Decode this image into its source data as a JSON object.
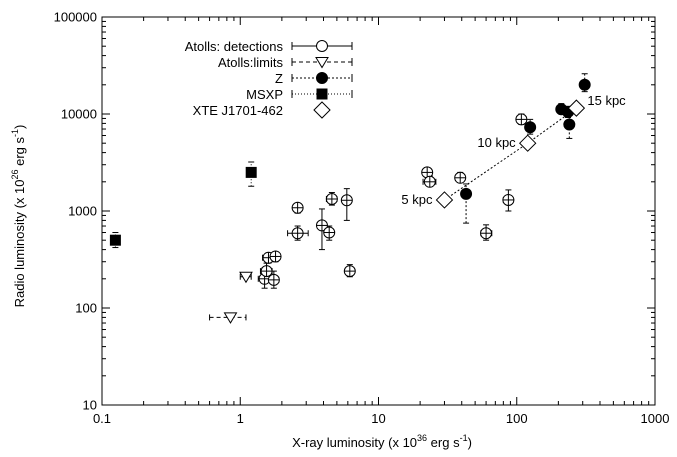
{
  "chart_data": {
    "type": "scatter",
    "xscale": "log",
    "yscale": "log",
    "xlim": [
      0.1,
      1000
    ],
    "ylim": [
      10,
      100000
    ],
    "grid": false,
    "legend_position": "top-left",
    "xlabel": {
      "pre": "X-ray luminosity (x 10",
      "sup": "36",
      "post": " erg s",
      "sup2": "-1",
      "end": ")"
    },
    "ylabel": {
      "pre": "Radio luminosity (x 10",
      "sup": "26",
      "post": " erg s",
      "sup2": "-1",
      "end": ")"
    },
    "xticks": [
      {
        "value": 0.1,
        "label": "0.1"
      },
      {
        "value": 1,
        "label": "1"
      },
      {
        "value": 10,
        "label": "10"
      },
      {
        "value": 100,
        "label": "100"
      },
      {
        "value": 1000,
        "label": "1000"
      }
    ],
    "yticks": [
      {
        "value": 10,
        "label": "10"
      },
      {
        "value": 100,
        "label": "100"
      },
      {
        "value": 1000,
        "label": "1000"
      },
      {
        "value": 10000,
        "label": "10000"
      },
      {
        "value": 100000,
        "label": "100000"
      }
    ],
    "series": [
      {
        "name": "Atolls: detections",
        "marker": "circle-cross-open",
        "line": "solid",
        "points": [
          {
            "x": 1.5,
            "y": 200,
            "xerr": [
              1.35,
              1.65
            ],
            "yerr": [
              160,
              260
            ]
          },
          {
            "x": 1.55,
            "y": 240,
            "xerr": [
              1.4,
              1.7
            ],
            "yerr": [
              200,
              290
            ]
          },
          {
            "x": 1.6,
            "y": 330,
            "xerr": [
              1.45,
              1.75
            ],
            "yerr": [
              290,
              370
            ]
          },
          {
            "x": 1.75,
            "y": 195,
            "xerr": [
              1.6,
              1.9
            ],
            "yerr": [
              160,
              240
            ]
          },
          {
            "x": 1.8,
            "y": 340,
            "xerr": [
              1.65,
              1.95
            ],
            "yerr": [
              300,
              380
            ]
          },
          {
            "x": 2.6,
            "y": 590,
            "xerr": [
              2.2,
              3.1
            ],
            "yerr": [
              500,
              700
            ]
          },
          {
            "x": 2.6,
            "y": 1080,
            "xerr": [
              2.45,
              2.75
            ],
            "yerr": [
              950,
              1200
            ]
          },
          {
            "x": 3.9,
            "y": 710,
            "xerr": [
              3.6,
              4.2
            ],
            "yerr": [
              400,
              1050
            ]
          },
          {
            "x": 4.4,
            "y": 600,
            "xerr": [
              4.1,
              4.7
            ],
            "yerr": [
              500,
              700
            ]
          },
          {
            "x": 4.6,
            "y": 1330,
            "xerr": [
              4.2,
              5.0
            ],
            "yerr": [
              1150,
              1550
            ]
          },
          {
            "x": 5.9,
            "y": 1290,
            "xerr": [
              5.5,
              6.3
            ],
            "yerr": [
              800,
              1700
            ]
          },
          {
            "x": 6.2,
            "y": 240,
            "xerr": [
              5.9,
              6.5
            ],
            "yerr": [
              210,
              280
            ]
          },
          {
            "x": 22.5,
            "y": 2500,
            "xerr": [
              21,
              24
            ],
            "yerr": [
              2300,
              2800
            ]
          },
          {
            "x": 23.5,
            "y": 2000,
            "xerr": [
              21,
              26
            ],
            "yerr": [
              1800,
              2300
            ]
          },
          {
            "x": 39,
            "y": 2200,
            "xerr": [
              36,
              42
            ],
            "yerr": [
              2000,
              2500
            ]
          },
          {
            "x": 60,
            "y": 590,
            "xerr": [
              55,
              66
            ],
            "yerr": [
              500,
              720
            ]
          },
          {
            "x": 87,
            "y": 1300,
            "xerr": [
              80,
              94
            ],
            "yerr": [
              1000,
              1650
            ]
          },
          {
            "x": 108,
            "y": 8800,
            "xerr": [
              100,
              117
            ],
            "yerr": [
              7800,
              10000
            ]
          }
        ]
      },
      {
        "name": "Atolls:limits",
        "marker": "triangle-down-open",
        "line": "dashed",
        "points": [
          {
            "x": 0.85,
            "y": 80,
            "xerr": [
              0.6,
              1.1
            ]
          },
          {
            "x": 1.1,
            "y": 210,
            "xerr": [
              1.0,
              1.2
            ]
          }
        ]
      },
      {
        "name": "Z",
        "marker": "circle-filled",
        "line": "dotted",
        "points": [
          {
            "x": 43,
            "y": 1500,
            "yerr": [
              750,
              1900
            ]
          },
          {
            "x": 125,
            "y": 7300,
            "yerr": [
              6200,
              8800
            ]
          },
          {
            "x": 210,
            "y": 11200,
            "yerr": [
              10000,
              12800
            ]
          },
          {
            "x": 235,
            "y": 10500,
            "yerr": [
              9200,
              12000
            ]
          },
          {
            "x": 240,
            "y": 7800,
            "yerr": [
              5600,
              10000
            ]
          },
          {
            "x": 310,
            "y": 20000,
            "yerr": [
              17000,
              26000
            ]
          }
        ]
      },
      {
        "name": "MSXP",
        "marker": "square-filled",
        "line": "dotted",
        "points": [
          {
            "x": 0.125,
            "y": 500,
            "yerr": [
              420,
              600
            ]
          },
          {
            "x": 1.2,
            "y": 2500,
            "yerr": [
              1800,
              3200
            ]
          }
        ]
      },
      {
        "name": "XTE J1701-462",
        "marker": "diamond-open",
        "line": "none",
        "connect_points": true,
        "points": [
          {
            "x": 30,
            "y": 1300,
            "label": "5 kpc"
          },
          {
            "x": 120,
            "y": 5000,
            "label": "10 kpc"
          },
          {
            "x": 270,
            "y": 11500,
            "label": "15 kpc"
          }
        ]
      }
    ]
  }
}
